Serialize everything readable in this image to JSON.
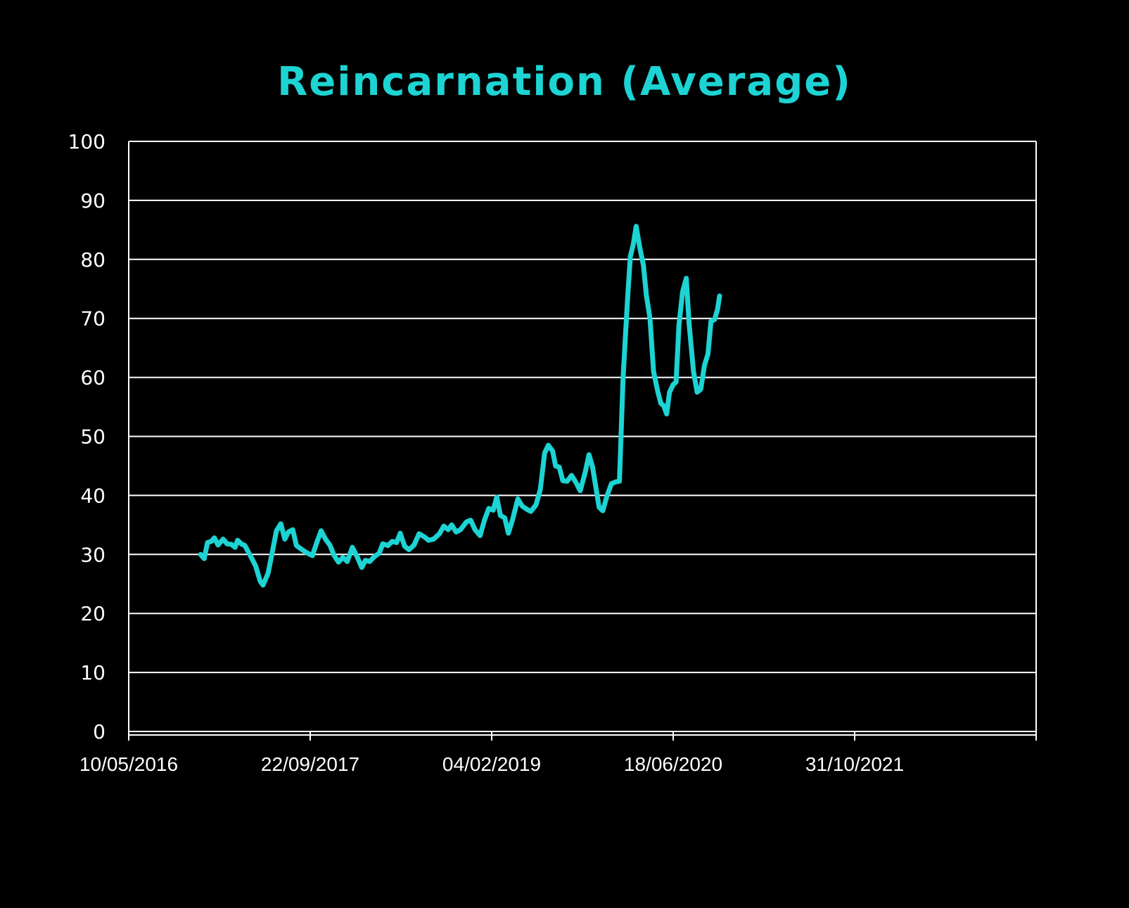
{
  "title": "Reincarnation (Average)",
  "colors": {
    "background": "#000000",
    "line": "#1dd3d3",
    "title": "#1dd3d3",
    "grid": "#ffffff",
    "text": "#ffffff"
  },
  "chart_data": {
    "type": "line",
    "title": "Reincarnation (Average)",
    "xlabel": "",
    "ylabel": "",
    "ylim": [
      0,
      100
    ],
    "yticks": [
      0,
      10,
      20,
      30,
      40,
      50,
      60,
      70,
      80,
      90,
      100
    ],
    "xtick_labels": [
      "10/05/2016",
      "22/09/2017",
      "04/02/2019",
      "18/06/2020",
      "31/10/2021",
      ""
    ],
    "xtick_days_from_start": [
      0,
      500,
      1000,
      1500,
      2000,
      2500
    ],
    "grid": true,
    "legend": "none",
    "series": [
      {
        "name": "Reincarnation (Average)",
        "points_days_value": [
          [
            198,
            30
          ],
          [
            208,
            29.3
          ],
          [
            217,
            32
          ],
          [
            227,
            32.2
          ],
          [
            236,
            32.8
          ],
          [
            246,
            31.6
          ],
          [
            260,
            32.6
          ],
          [
            271,
            31.8
          ],
          [
            283,
            31.7
          ],
          [
            293,
            31.2
          ],
          [
            300,
            32.4
          ],
          [
            310,
            31.8
          ],
          [
            320,
            31.5
          ],
          [
            335,
            29.8
          ],
          [
            350,
            28
          ],
          [
            362,
            25.5
          ],
          [
            370,
            24.8
          ],
          [
            384,
            26.8
          ],
          [
            396,
            30.5
          ],
          [
            407,
            34
          ],
          [
            419,
            35.2
          ],
          [
            430,
            32.6
          ],
          [
            440,
            33.8
          ],
          [
            452,
            34.2
          ],
          [
            462,
            31.5
          ],
          [
            478,
            30.8
          ],
          [
            490,
            30.3
          ],
          [
            506,
            29.8
          ],
          [
            518,
            32
          ],
          [
            530,
            34
          ],
          [
            542,
            32.6
          ],
          [
            554,
            31.6
          ],
          [
            566,
            29.8
          ],
          [
            578,
            28.7
          ],
          [
            590,
            29.5
          ],
          [
            602,
            28.8
          ],
          [
            616,
            31.2
          ],
          [
            630,
            29.5
          ],
          [
            642,
            27.8
          ],
          [
            652,
            29
          ],
          [
            664,
            28.8
          ],
          [
            676,
            29.6
          ],
          [
            690,
            30.2
          ],
          [
            700,
            31.8
          ],
          [
            714,
            31.5
          ],
          [
            726,
            32.2
          ],
          [
            738,
            32
          ],
          [
            748,
            33.6
          ],
          [
            760,
            31.4
          ],
          [
            772,
            30.8
          ],
          [
            786,
            31.6
          ],
          [
            800,
            33.5
          ],
          [
            814,
            33
          ],
          [
            826,
            32.4
          ],
          [
            840,
            32.6
          ],
          [
            856,
            33.5
          ],
          [
            868,
            34.8
          ],
          [
            880,
            34.2
          ],
          [
            890,
            35
          ],
          [
            902,
            33.8
          ],
          [
            914,
            34.2
          ],
          [
            930,
            35.5
          ],
          [
            942,
            35.8
          ],
          [
            954,
            34.2
          ],
          [
            968,
            33.2
          ],
          [
            980,
            35.8
          ],
          [
            992,
            37.8
          ],
          [
            1004,
            37.5
          ],
          [
            1014,
            39.7
          ],
          [
            1024,
            36.6
          ],
          [
            1036,
            36.2
          ],
          [
            1046,
            33.6
          ],
          [
            1058,
            36
          ],
          [
            1072,
            39.4
          ],
          [
            1084,
            38.2
          ],
          [
            1098,
            37.6
          ],
          [
            1108,
            37.3
          ],
          [
            1122,
            38.4
          ],
          [
            1134,
            41
          ],
          [
            1146,
            47.2
          ],
          [
            1156,
            48.5
          ],
          [
            1168,
            47.5
          ],
          [
            1176,
            45
          ],
          [
            1186,
            44.8
          ],
          [
            1196,
            42.5
          ],
          [
            1208,
            42.4
          ],
          [
            1220,
            43.4
          ],
          [
            1232,
            42.2
          ],
          [
            1244,
            40.8
          ],
          [
            1258,
            44
          ],
          [
            1268,
            46.9
          ],
          [
            1278,
            44.8
          ],
          [
            1288,
            41
          ],
          [
            1296,
            38
          ],
          [
            1306,
            37.4
          ],
          [
            1318,
            40
          ],
          [
            1330,
            42
          ],
          [
            1342,
            42.3
          ],
          [
            1352,
            42.4
          ],
          [
            1362,
            60
          ],
          [
            1374,
            73
          ],
          [
            1382,
            80.5
          ],
          [
            1390,
            82.5
          ],
          [
            1398,
            85.6
          ],
          [
            1408,
            82
          ],
          [
            1418,
            79
          ],
          [
            1426,
            74
          ],
          [
            1436,
            70
          ],
          [
            1446,
            61
          ],
          [
            1458,
            57.5
          ],
          [
            1466,
            55.6
          ],
          [
            1474,
            55.2
          ],
          [
            1482,
            53.8
          ],
          [
            1490,
            57.5
          ],
          [
            1500,
            58.8
          ],
          [
            1508,
            59.2
          ],
          [
            1516,
            69
          ],
          [
            1526,
            74.5
          ],
          [
            1536,
            76.8
          ],
          [
            1544,
            69
          ],
          [
            1556,
            61
          ],
          [
            1566,
            57.5
          ],
          [
            1576,
            58
          ],
          [
            1586,
            62
          ],
          [
            1596,
            64
          ],
          [
            1604,
            69.5
          ],
          [
            1614,
            69.8
          ],
          [
            1622,
            71.5
          ],
          [
            1628,
            73.8
          ]
        ]
      }
    ]
  },
  "axes": {
    "y_labels": [
      "0",
      "10",
      "20",
      "30",
      "40",
      "50",
      "60",
      "70",
      "80",
      "90",
      "100"
    ],
    "x_labels": [
      "10/05/2016",
      "22/09/2017",
      "04/02/2019",
      "18/06/2020",
      "31/10/2021"
    ]
  }
}
